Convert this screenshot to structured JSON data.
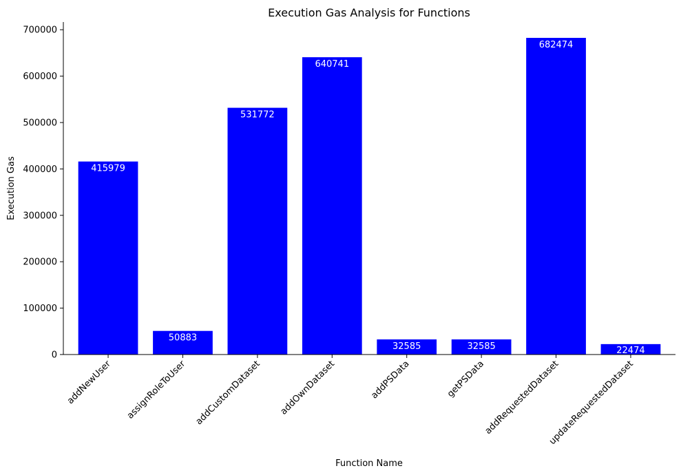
{
  "chart_data": {
    "type": "bar",
    "title": "Execution Gas Analysis for Functions",
    "xlabel": "Function Name",
    "ylabel": "Execution Gas",
    "categories": [
      "addNewUser",
      "assignRoleToUser",
      "addCustomDataset",
      "addOwnDataset",
      "addPSData",
      "getPSData",
      "addRequestedDataset",
      "updateRequestedDataset"
    ],
    "values": [
      415979,
      50883,
      531772,
      640741,
      32585,
      32585,
      682474,
      22474
    ],
    "data_labels": [
      "415979",
      "50883",
      "531772",
      "640741",
      "32585",
      "32585",
      "682474",
      "22474"
    ],
    "ylim": [
      0,
      716598
    ],
    "yticks": [
      0,
      100000,
      200000,
      300000,
      400000,
      500000,
      600000,
      700000
    ],
    "ytick_labels": [
      "0",
      "100000",
      "200000",
      "300000",
      "400000",
      "500000",
      "600000",
      "700000"
    ],
    "bar_color": "#0000ff",
    "label_color": "#ffffff",
    "grid": false,
    "legend": "none"
  }
}
